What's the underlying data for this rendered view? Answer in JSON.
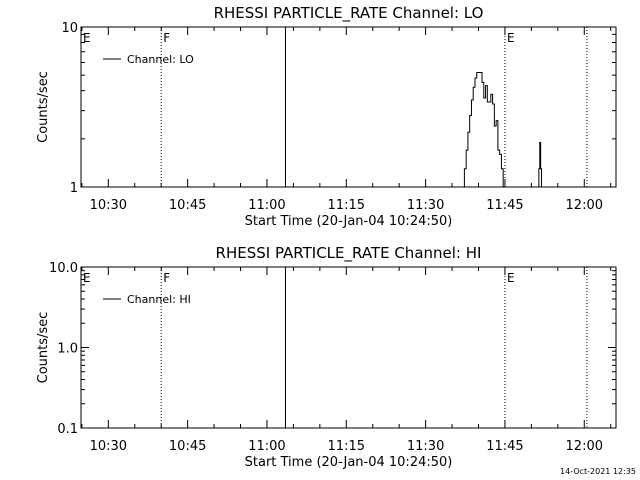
{
  "chart_data": [
    {
      "type": "line",
      "title": "RHESSI PARTICLE_RATE Channel: LO",
      "xlabel": "Start Time (20-Jan-04 10:24:50)",
      "ylabel": "Counts/sec",
      "yscale": "log",
      "xlim": [
        "10:24:50",
        "12:06"
      ],
      "ylim": [
        1,
        10
      ],
      "xticks": [
        "10:30",
        "10:45",
        "11:00",
        "11:15",
        "11:30",
        "11:45",
        "12:00"
      ],
      "yticks": [
        "1",
        "10"
      ],
      "legend": {
        "location": "top-left",
        "entries": [
          "Channel: LO"
        ]
      },
      "grid": false,
      "markers": [
        {
          "label": "E",
          "time": "10:24:50",
          "style": "none"
        },
        {
          "label": "F",
          "time": "10:40:00",
          "style": "dotted"
        },
        {
          "label": "",
          "time": "11:03:30",
          "style": "solid"
        },
        {
          "label": "E",
          "time": "11:45:00",
          "style": "dotted"
        },
        {
          "label": "",
          "time": "12:00:30",
          "style": "dotted"
        }
      ],
      "series": [
        {
          "name": "Channel: LO",
          "segments": [
            [
              [
                "11:37:00",
                1.0
              ],
              [
                "11:37:20",
                1.3
              ],
              [
                "11:37:40",
                1.7
              ],
              [
                "11:38:00",
                2.2
              ],
              [
                "11:38:20",
                2.8
              ],
              [
                "11:38:40",
                3.5
              ],
              [
                "11:39:00",
                4.2
              ],
              [
                "11:39:20",
                4.8
              ],
              [
                "11:39:40",
                5.2
              ],
              [
                "11:40:00",
                5.2
              ],
              [
                "11:40:20",
                5.2
              ],
              [
                "11:40:40",
                4.5
              ],
              [
                "11:41:00",
                3.6
              ],
              [
                "11:41:20",
                4.3
              ],
              [
                "11:41:40",
                3.4
              ],
              [
                "11:42:00",
                3.4
              ],
              [
                "11:42:20",
                3.8
              ],
              [
                "11:42:40",
                3.3
              ],
              [
                "11:43:00",
                2.4
              ],
              [
                "11:43:20",
                2.6
              ],
              [
                "11:43:40",
                1.7
              ],
              [
                "11:44:00",
                1.6
              ],
              [
                "11:44:20",
                1.3
              ],
              [
                "11:44:40",
                1.0
              ]
            ],
            [
              [
                "11:51:15",
                1.0
              ],
              [
                "11:51:25",
                1.3
              ],
              [
                "11:51:35",
                1.9
              ],
              [
                "11:51:45",
                1.3
              ],
              [
                "11:51:55",
                1.0
              ]
            ]
          ]
        }
      ]
    },
    {
      "type": "line",
      "title": "RHESSI PARTICLE_RATE Channel: HI",
      "xlabel": "Start Time (20-Jan-04 10:24:50)",
      "ylabel": "Counts/sec",
      "yscale": "log",
      "xlim": [
        "10:24:50",
        "12:06"
      ],
      "ylim": [
        0.1,
        10
      ],
      "xticks": [
        "10:30",
        "10:45",
        "11:00",
        "11:15",
        "11:30",
        "11:45",
        "12:00"
      ],
      "yticks": [
        "0.1",
        "1.0",
        "10.0"
      ],
      "legend": {
        "location": "top-left",
        "entries": [
          "Channel: HI"
        ]
      },
      "grid": false,
      "markers": [
        {
          "label": "E",
          "time": "10:24:50",
          "style": "none"
        },
        {
          "label": "F",
          "time": "10:40:00",
          "style": "dotted"
        },
        {
          "label": "",
          "time": "11:03:30",
          "style": "solid"
        },
        {
          "label": "E",
          "time": "11:45:00",
          "style": "dotted"
        },
        {
          "label": "",
          "time": "12:00:30",
          "style": "dotted"
        }
      ],
      "series": [
        {
          "name": "Channel: HI",
          "segments": []
        }
      ]
    }
  ],
  "footer": {
    "timestamp": "14-Oct-2021 12:35"
  }
}
